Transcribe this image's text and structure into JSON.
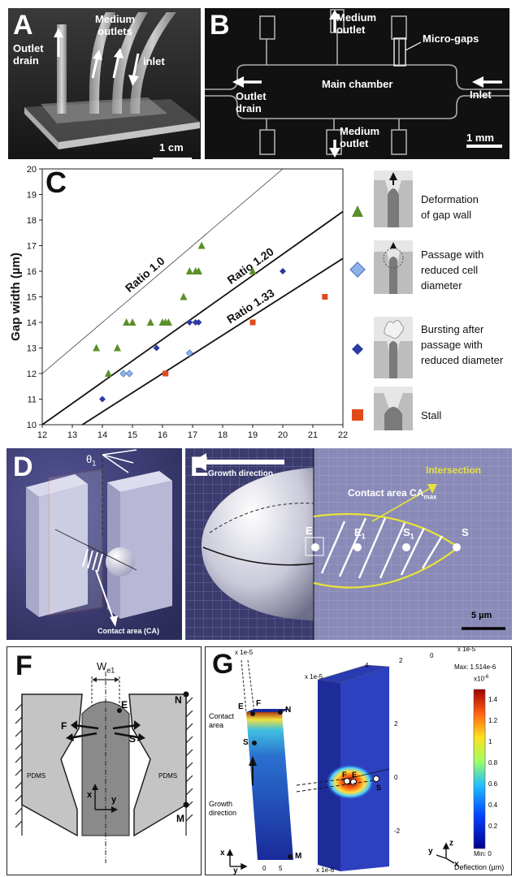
{
  "panels": {
    "A": {
      "letter": "A",
      "labels": {
        "outlet_drain": [
          "Outlet",
          "drain"
        ],
        "medium_outlets": [
          "Medium",
          "outlets"
        ],
        "inlet": "inlet",
        "scale": "1 cm"
      }
    },
    "B": {
      "letter": "B",
      "labels": {
        "medium_outlet_top": [
          "Medium",
          "outlet"
        ],
        "micro_gaps": "Micro-gaps",
        "main_chamber": "Main chamber",
        "outlet_drain": [
          "Outlet",
          "drain"
        ],
        "inlet": "Inlet",
        "medium_outlet_bottom": [
          "Medium",
          "outlet"
        ],
        "scale": "1 mm"
      }
    },
    "C": {
      "letter": "C",
      "legend": [
        {
          "label": [
            "Deformation",
            "of gap wall"
          ],
          "marker": "triangle",
          "color": "#5a8f29"
        },
        {
          "label": [
            "Passage with",
            "reduced cell",
            "diameter"
          ],
          "marker": "diamond",
          "color": "#8fb3e8"
        },
        {
          "label": [
            "Bursting after",
            "passage with",
            "reduced diameter"
          ],
          "marker": "diamond",
          "color": "#2d3aa0"
        },
        {
          "label": [
            "Stall"
          ],
          "marker": "square",
          "color": "#e04a1a"
        }
      ]
    },
    "D": {
      "letter": "D",
      "labels": {
        "theta": "θ",
        "theta_sub": "1",
        "contact_area": "Contact area (CA)"
      }
    },
    "E": {
      "letter": "E",
      "labels": {
        "growth_direction": "Growth direction",
        "intersection": "Intersection",
        "contact_area": "Contact area CA",
        "contact_area_sub": "max",
        "points": [
          "E",
          "E",
          "S",
          "S"
        ],
        "point_subs": [
          "",
          "1",
          "1",
          ""
        ],
        "scale": "5 µm"
      }
    },
    "F": {
      "letter": "F",
      "labels": {
        "we": "W",
        "we_sub": "e1",
        "E": "E",
        "N": "N",
        "F": "F",
        "S": "S",
        "pdms_left": "PDMS",
        "pdms_right": "PDMS",
        "x": "x",
        "y": "y",
        "M": "M"
      }
    },
    "G": {
      "letter": "G",
      "labels": {
        "scale_top_left": "x 1e-5",
        "scale_top_right": "x 1e-5",
        "scale_left_axis": "x 1e-5",
        "scale_bottom": "x 1e-6",
        "E": "E",
        "F": "F",
        "N": "N",
        "S": "S",
        "M": "M",
        "contact_area": [
          "Contact",
          "area"
        ],
        "growth_direction": [
          "Growth",
          "direction"
        ],
        "max": "Max: 1.514e-6",
        "min": "Min: 0",
        "colorbar_exp": "x10",
        "colorbar_exp_sup": "-6",
        "deflection": "Deflection (µm)",
        "colorbar_ticks": [
          "1.4",
          "1.2",
          "1",
          "0.8",
          "0.6",
          "0.4",
          "0.2"
        ],
        "depth_ticks": [
          "4",
          "2",
          "0"
        ],
        "vertical_ticks": [
          "2",
          "0",
          "-2"
        ],
        "bottom_ticks": [
          "0",
          "5"
        ],
        "right_points": [
          "F",
          "E",
          "S"
        ],
        "axes_left": {
          "x": "x",
          "y": "y"
        },
        "axes_right": {
          "y": "y",
          "z": "z",
          "x": "x"
        }
      }
    }
  },
  "chart_data": {
    "type": "scatter",
    "title": "",
    "xlabel": "",
    "ylabel": "Gap width (µm)",
    "xlim": [
      12,
      22
    ],
    "ylim": [
      10,
      20
    ],
    "xticks": [
      "12",
      "13",
      "14",
      "15",
      "16",
      "17",
      "18",
      "19",
      "20",
      "21",
      "22"
    ],
    "yticks": [
      "10",
      "11",
      "12",
      "13",
      "14",
      "15",
      "16",
      "17",
      "18",
      "19",
      "20"
    ],
    "grid": false,
    "legend_position": "right",
    "reference_lines": [
      {
        "label": "Ratio 1.0",
        "slope": 1.0
      },
      {
        "label": "Ratio 1.20",
        "slope": 0.8333
      },
      {
        "label": "Ratio 1.33",
        "slope": 0.75
      }
    ],
    "series": [
      {
        "name": "Deformation of gap wall",
        "marker": "triangle",
        "color": "#5a8f29",
        "points": [
          [
            13.8,
            13
          ],
          [
            14.2,
            12
          ],
          [
            14.5,
            13
          ],
          [
            14.8,
            14
          ],
          [
            15.0,
            14
          ],
          [
            15.6,
            14
          ],
          [
            16.0,
            14
          ],
          [
            16.2,
            14
          ],
          [
            16.1,
            14
          ],
          [
            16.7,
            15
          ],
          [
            16.9,
            16
          ],
          [
            17.1,
            16
          ],
          [
            17.2,
            16
          ],
          [
            17.3,
            17
          ],
          [
            19.0,
            16
          ]
        ]
      },
      {
        "name": "Passage with reduced cell diameter",
        "marker": "diamond",
        "color": "#8fb3e8",
        "points": [
          [
            14.7,
            12
          ],
          [
            14.9,
            12
          ],
          [
            16.9,
            12.8
          ]
        ]
      },
      {
        "name": "Bursting after passage with reduced diameter",
        "marker": "diamond",
        "color": "#2d3aa0",
        "points": [
          [
            14.0,
            11
          ],
          [
            15.8,
            13
          ],
          [
            16.9,
            14
          ],
          [
            17.1,
            14
          ],
          [
            17.2,
            14
          ],
          [
            20.0,
            16
          ]
        ]
      },
      {
        "name": "Stall",
        "marker": "square",
        "color": "#e04a1a",
        "points": [
          [
            16.1,
            12
          ],
          [
            19.0,
            14
          ],
          [
            21.4,
            15
          ]
        ]
      }
    ]
  }
}
